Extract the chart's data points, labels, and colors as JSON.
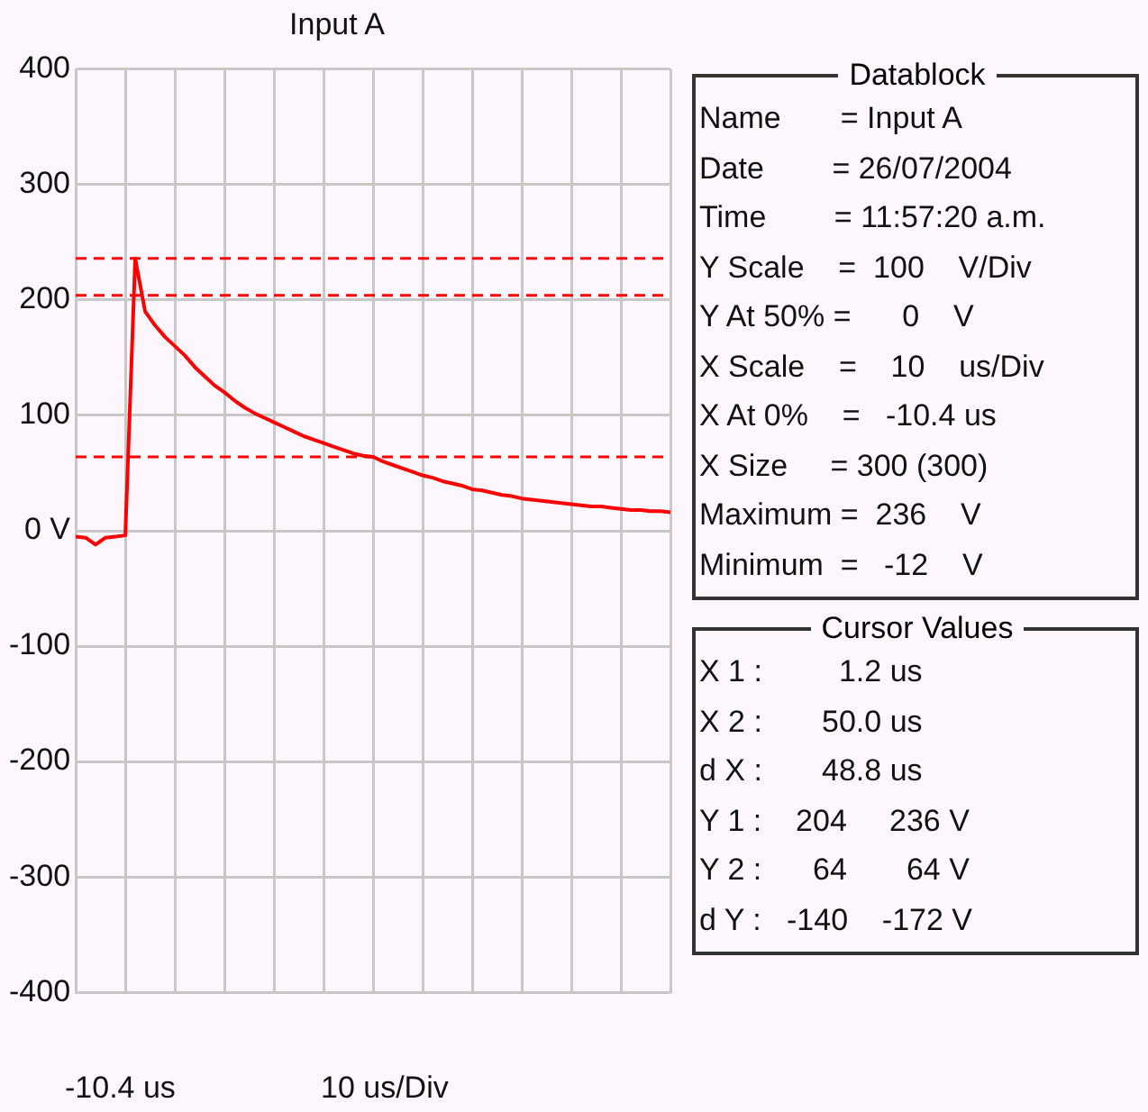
{
  "chart_data": {
    "type": "line",
    "title": "Input A",
    "categories": [
      null,
      null,
      null,
      null,
      null,
      null,
      null,
      null,
      null,
      null,
      null,
      null,
      null,
      null,
      null,
      null,
      null,
      null,
      null,
      null,
      null,
      null,
      null,
      null,
      null,
      null,
      null,
      null,
      null,
      null,
      null,
      null,
      null,
      null,
      null,
      null,
      null,
      null,
      null,
      null,
      null,
      null,
      null,
      null,
      null,
      null,
      null,
      null,
      null,
      null,
      null,
      null,
      null,
      null,
      null,
      null,
      null,
      null,
      null,
      null,
      null
    ],
    "series": [
      {
        "color": "#ff0000",
        "values": [
          -5,
          -6,
          -12,
          -6,
          -5,
          -4,
          236,
          190,
          178,
          168,
          160,
          152,
          142,
          134,
          126,
          120,
          113,
          107,
          102,
          98,
          94,
          90,
          86,
          82,
          79,
          76,
          73,
          70,
          67,
          65,
          64,
          60,
          57,
          54,
          51,
          48,
          46,
          43,
          41,
          39,
          36,
          35,
          33,
          31,
          30,
          28,
          27,
          26,
          25,
          24,
          23,
          22,
          21,
          21,
          20,
          19,
          18,
          18,
          17,
          17,
          16
        ]
      }
    ],
    "ylim": [
      -400,
      400
    ],
    "yticks": [
      {
        "value": -400,
        "label": "-400"
      },
      {
        "value": -300,
        "label": "-300"
      },
      {
        "value": -200,
        "label": "-200"
      },
      {
        "value": -100,
        "label": "-100"
      },
      {
        "value": 0,
        "label": "0 V"
      },
      {
        "value": 100,
        "label": "100"
      },
      {
        "value": 200,
        "label": "200"
      },
      {
        "value": 300,
        "label": "300"
      },
      {
        "value": 400,
        "label": "400"
      }
    ],
    "grid": true,
    "marker": "none",
    "line_style": "solid",
    "legend": false,
    "ref_lines": [
      {
        "axis": "y",
        "value": 236,
        "label": null,
        "color": "#ff0000",
        "line_style": "dashed"
      },
      {
        "axis": "y",
        "value": 204,
        "label": null,
        "color": "#ff0000",
        "line_style": "dashed"
      },
      {
        "axis": "y",
        "value": 64,
        "label": null,
        "color": "#ff0000",
        "line_style": "dashed"
      }
    ],
    "annotations": [
      "-10.4 us",
      "10 us/Div",
      "Datablock",
      "Name       = Input A",
      "Date        = 26/07/2004",
      "Time        = 11:57:20 a.m.",
      "Y Scale    =  100    V/Div",
      "Y At 50% =      0    V",
      "X Scale    =    10    us/Div",
      "X At 0%    =   -10.4 us",
      "X Size     = 300 (300)",
      "Maximum =  236    V",
      "Minimum  =   -12    V",
      "Cursor Values",
      "X 1 :         1.2 us",
      "X 2 :       50.0 us",
      "d X :       48.8 us",
      "Y 1 :    204     236 V",
      "Y 2 :      64       64 V",
      "d Y :   -140    -172 V"
    ]
  }
}
